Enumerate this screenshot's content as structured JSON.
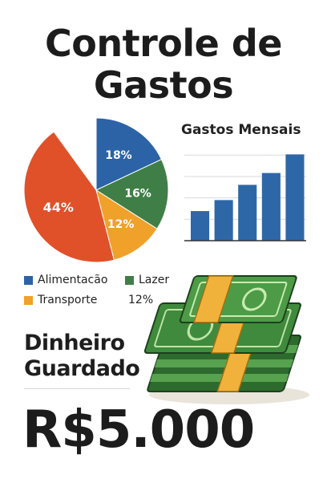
{
  "header": {
    "title_line1": "Controle de",
    "title_line2": "Gastos"
  },
  "chart_data": [
    {
      "type": "pie",
      "slices": [
        {
          "label": "Alimentacão",
          "value": 18,
          "display": "18%",
          "color": "#2b63a6"
        },
        {
          "label": "Lazer",
          "value": 16,
          "display": "16%",
          "color": "#3f7f47"
        },
        {
          "label": "Transporte",
          "value": 12,
          "display": "12%",
          "color": "#f0a12a"
        },
        {
          "label": "",
          "value": 44,
          "display": "44%",
          "color": "#e0512a"
        }
      ]
    },
    {
      "type": "bar",
      "title": "Gastos Mensais",
      "values": [
        35,
        48,
        66,
        80,
        102
      ],
      "ylim": [
        0,
        110
      ],
      "color": "#2e67a8",
      "grid": true
    }
  ],
  "legend": {
    "items": [
      {
        "label": "Alimentacão",
        "color": "#2b63a6"
      },
      {
        "label": "Lazer",
        "color": "#3f7f47"
      },
      {
        "label": "Transporte",
        "color": "#f0a12a"
      }
    ],
    "extra_text": "12%"
  },
  "savings": {
    "label_line1": "Dinheiro",
    "label_line2": "Guardado",
    "amount": "R$5.000"
  },
  "colors": {
    "money_green": "#3f8a3c",
    "money_dark": "#2d6a2d",
    "band": "#f0b23a"
  },
  "icons": {
    "money": "money-stack-icon"
  }
}
